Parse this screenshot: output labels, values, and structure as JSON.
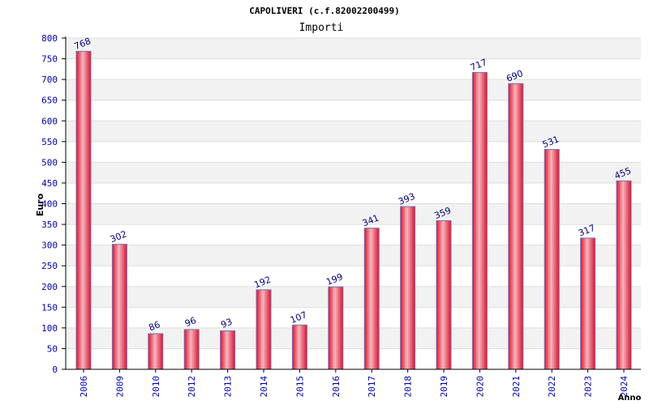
{
  "chart_data": {
    "type": "bar",
    "title": "CAPOLIVERI (c.f.82002200499)",
    "subtitle": "Importi",
    "xlabel": "Anno",
    "ylabel": "Euro",
    "categories": [
      "2006",
      "2009",
      "2010",
      "2012",
      "2013",
      "2014",
      "2015",
      "2016",
      "2017",
      "2018",
      "2019",
      "2020",
      "2021",
      "2022",
      "2023",
      "2024"
    ],
    "values": [
      768,
      302,
      86,
      96,
      93,
      192,
      107,
      199,
      341,
      393,
      359,
      717,
      690,
      531,
      317,
      455
    ],
    "data_labels": [
      "768",
      "302",
      "86",
      "96",
      "93",
      "192",
      "107",
      "199",
      "341",
      "393",
      "359",
      "717",
      "690",
      "531",
      "317",
      "455"
    ],
    "ylim": [
      0,
      800
    ],
    "yticks": [
      "0",
      "50",
      "100",
      "150",
      "200",
      "250",
      "300",
      "350",
      "400",
      "450",
      "500",
      "550",
      "600",
      "650",
      "700",
      "750",
      "800"
    ],
    "grid": true,
    "legend": "none"
  },
  "colors": {
    "bar_center": "#f4b6bf",
    "bar_edge": "#e0102a",
    "bar_stroke": "#7a6fae",
    "tick_text": "#0000aa",
    "data_label": "#000080",
    "band": "#f2f2f2",
    "gridline": "#dddddd",
    "axis": "#000000"
  }
}
